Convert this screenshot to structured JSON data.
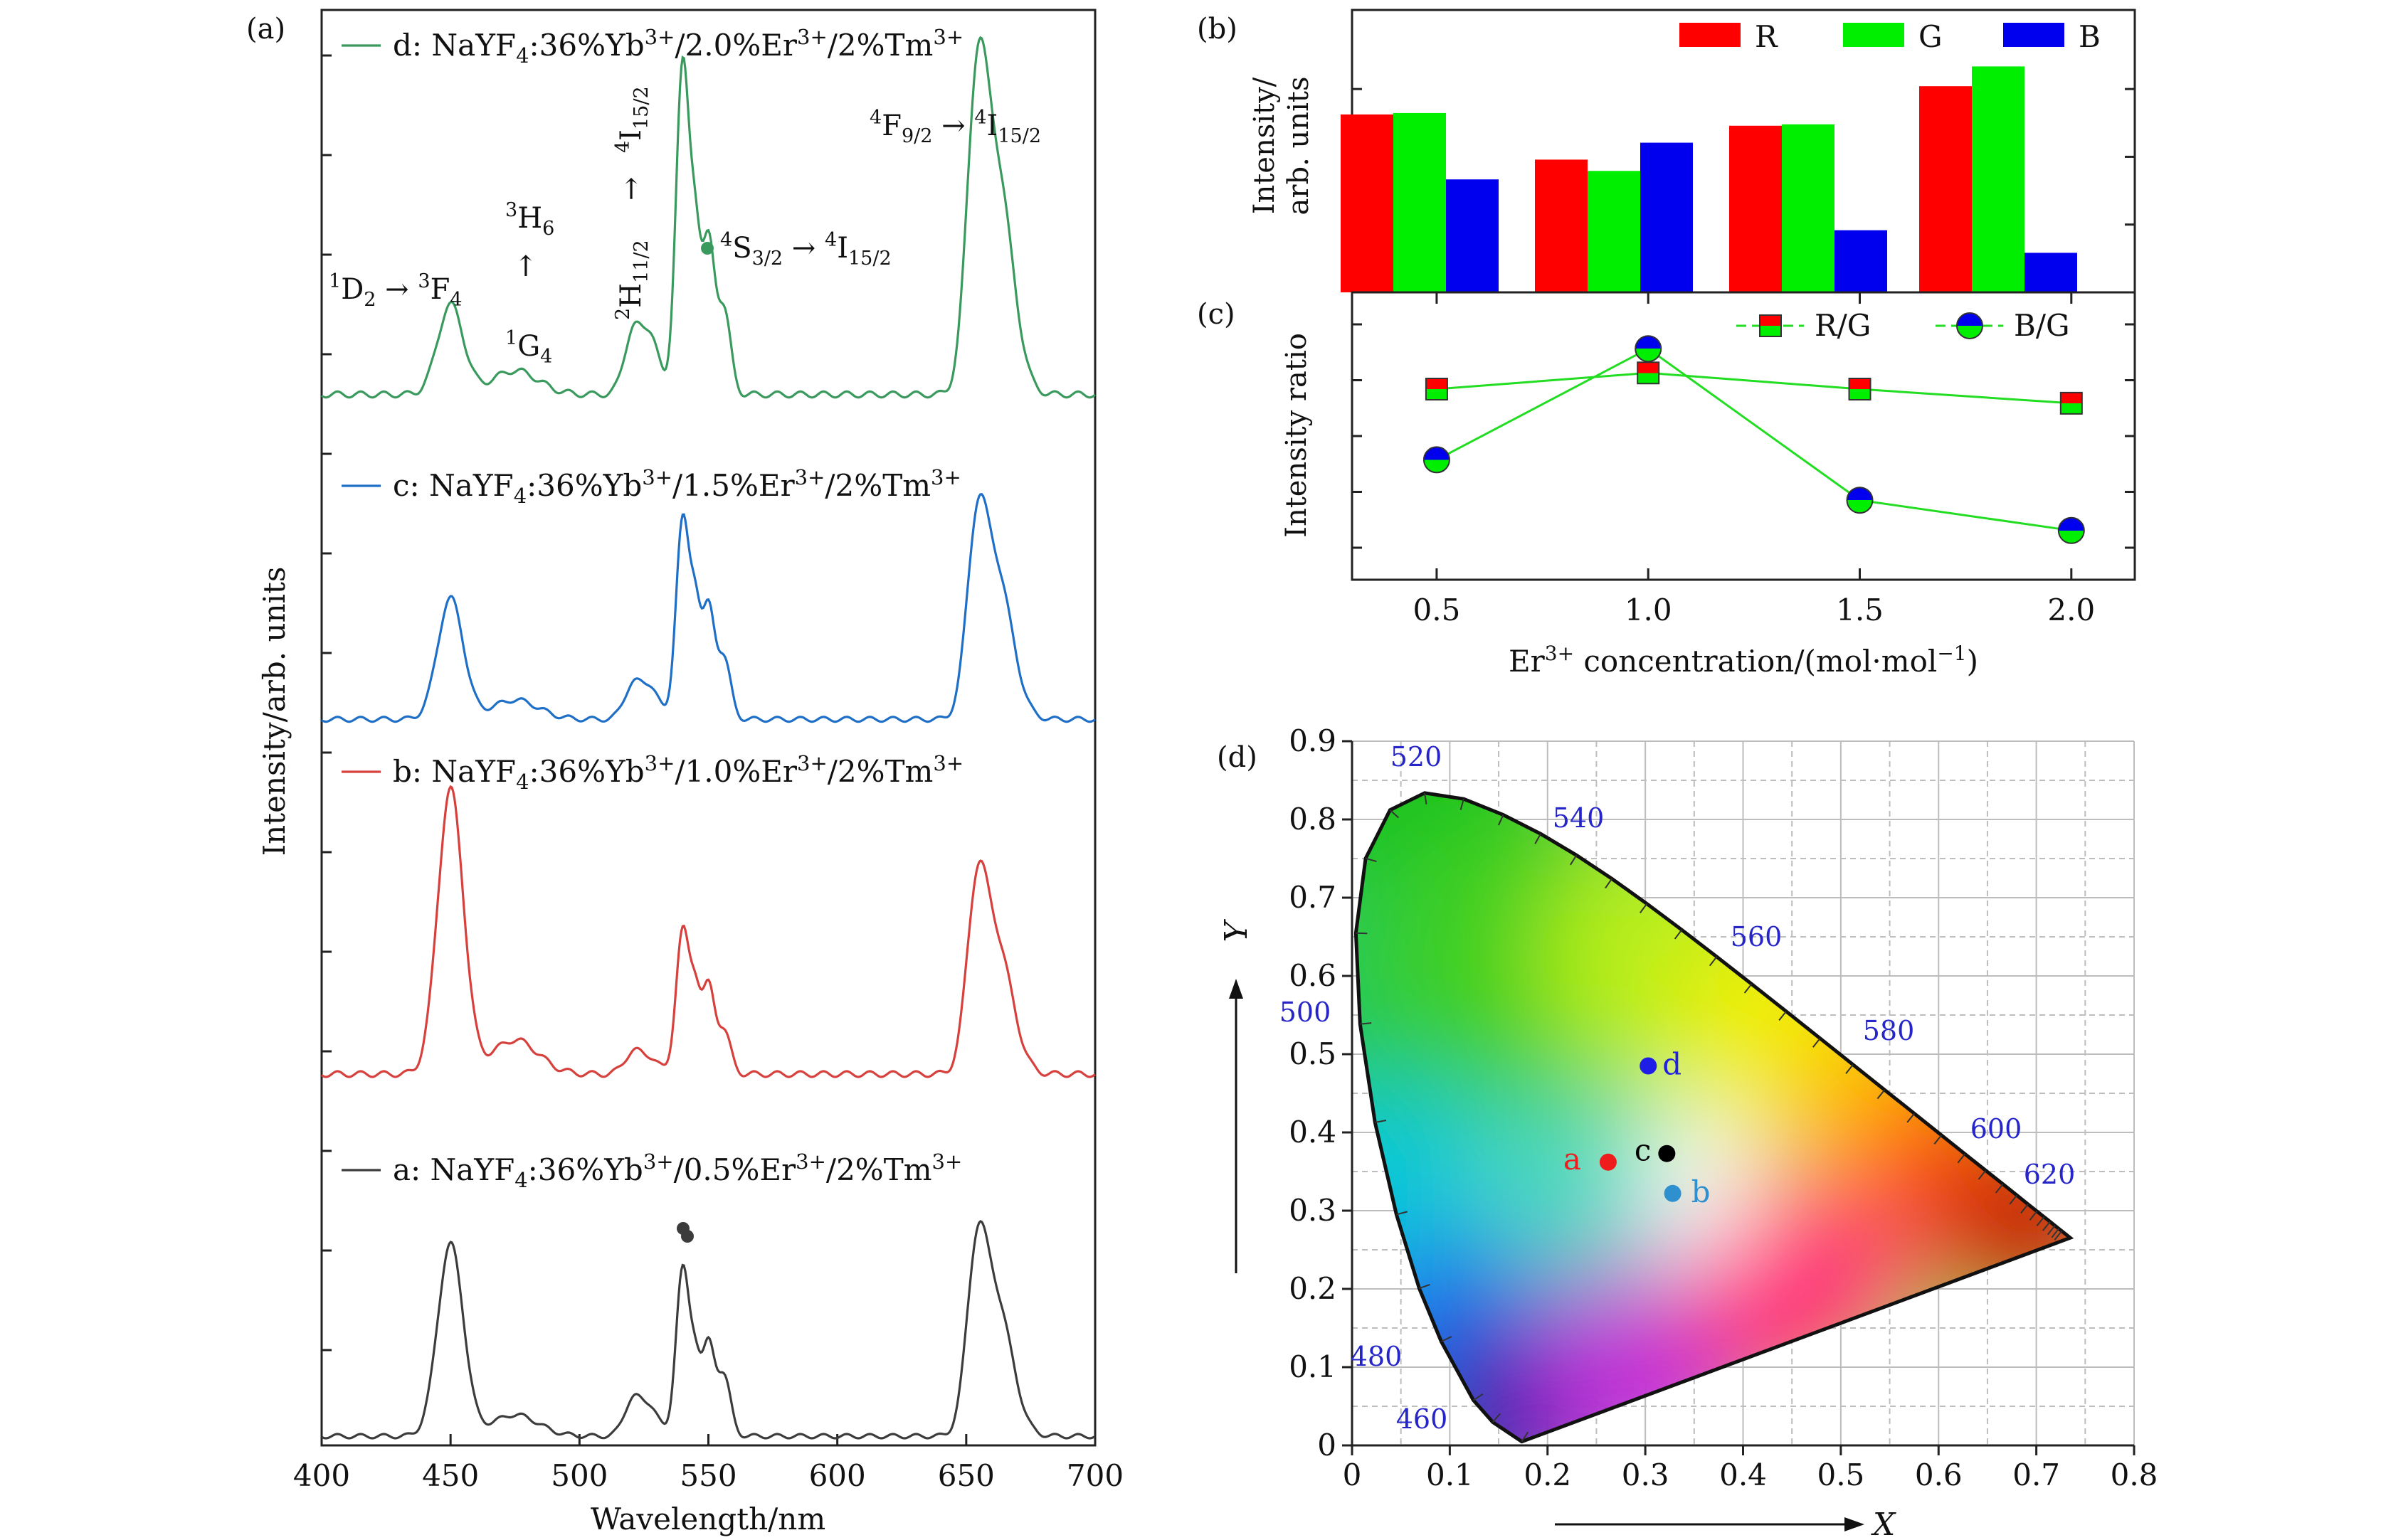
{
  "chart_data": [
    {
      "panel_label": "(a)",
      "type": "line",
      "xlabel": "Wavelength/nm",
      "ylabel": "Intensity/arb. units",
      "xlim": [
        400,
        700
      ],
      "xticks": [
        "400",
        "450",
        "500",
        "550",
        "600",
        "650",
        "700"
      ],
      "peaks": [
        {
          "nm": 450,
          "w": 5,
          "key": "p450"
        },
        {
          "nm": 475,
          "w": 9,
          "key": "p475"
        },
        {
          "nm": 521,
          "w": 3.5,
          "key": "p521"
        },
        {
          "nm": 528,
          "w": 3,
          "key": "p528"
        },
        {
          "nm": 540,
          "w": 2.6,
          "key": "p540"
        },
        {
          "nm": 545,
          "w": 2,
          "key": "p545"
        },
        {
          "nm": 550,
          "w": 2.4,
          "key": "p550"
        },
        {
          "nm": 556,
          "w": 2.6,
          "key": "p556"
        },
        {
          "nm": 654,
          "w": 4,
          "key": "p654"
        },
        {
          "nm": 662,
          "w": 6,
          "key": "p662"
        }
      ],
      "series": [
        {
          "id": "a",
          "name": "a: NaYF4:36%Yb3+/0.5%Er3+/2%Tm3+",
          "color": "#3c3c3c",
          "amp": {
            "p450": 0.9,
            "p475": 0.1,
            "p521": 0.18,
            "p528": 0.12,
            "p540": 0.78,
            "p545": 0.3,
            "p550": 0.42,
            "p556": 0.28,
            "p654": 0.72,
            "p662": 0.6
          }
        },
        {
          "id": "b",
          "name": "b: NaYF4:36%Yb3+/1.0%Er3+/2%Tm3+",
          "color": "#d6413d",
          "amp": {
            "p450": 1.0,
            "p475": 0.12,
            "p521": 0.08,
            "p528": 0.05,
            "p540": 0.5,
            "p545": 0.25,
            "p550": 0.3,
            "p556": 0.15,
            "p654": 0.54,
            "p662": 0.44
          }
        },
        {
          "id": "c",
          "name": "c: NaYF4:36%Yb3+/1.5%Er3+/2%Tm3+",
          "color": "#1f6fc6",
          "amp": {
            "p450": 0.5,
            "p475": 0.08,
            "p521": 0.15,
            "p528": 0.12,
            "p540": 0.82,
            "p545": 0.4,
            "p550": 0.45,
            "p556": 0.25,
            "p654": 0.65,
            "p662": 0.58
          }
        },
        {
          "id": "d",
          "name": "d: NaYF4:36%Yb3+/2.0%Er3+/2%Tm3+",
          "color": "#3a9a5e",
          "amp": {
            "p450": 0.3,
            "p475": 0.08,
            "p521": 0.22,
            "p528": 0.18,
            "p540": 1.1,
            "p545": 0.45,
            "p550": 0.5,
            "p556": 0.28,
            "p654": 0.85,
            "p662": 0.72
          }
        }
      ],
      "annotations": {
        "d2": "1D2 → 3F4",
        "g4": "1G4 → 3H6",
        "h11": "2H11/2 → 4I15/2",
        "s32": "4S3/2 → 4I15/2",
        "f92": "4F9/2 → 4I15/2"
      }
    },
    {
      "panel_label": "(b)",
      "type": "bar",
      "ylabel": "Intensity/ arb. units",
      "categories": [
        "0.5",
        "1.0",
        "1.5",
        "2.0"
      ],
      "series": [
        {
          "name": "R",
          "color": "#ff0000",
          "values": [
            0.63,
            0.47,
            0.59,
            0.73
          ]
        },
        {
          "name": "G",
          "color": "#00ee00",
          "values": [
            0.635,
            0.43,
            0.595,
            0.8
          ]
        },
        {
          "name": "B",
          "color": "#0000ee",
          "values": [
            0.4,
            0.53,
            0.22,
            0.14
          ]
        }
      ],
      "ylim": [
        0,
        1.0
      ]
    },
    {
      "panel_label": "(c)",
      "type": "line",
      "ylabel": "Intensity ratio",
      "xlabel": "Er3+ concentration/(mol·mol−1)",
      "x": [
        0.5,
        1.0,
        1.5,
        2.0
      ],
      "xticks": [
        "0.5",
        "1.0",
        "1.5",
        "2.0"
      ],
      "xlim": [
        0.3,
        2.15
      ],
      "ylim": [
        0,
        1.0
      ],
      "series": [
        {
          "name": "R/G",
          "values": [
            0.75,
            0.83,
            0.75,
            0.68
          ]
        },
        {
          "name": "B/G",
          "values": [
            0.4,
            0.95,
            0.2,
            0.05
          ]
        }
      ]
    },
    {
      "panel_label": "(d)",
      "type": "scatter",
      "xlabel": "X",
      "ylabel": "Y",
      "xlim": [
        0,
        0.8
      ],
      "ylim": [
        0,
        0.9
      ],
      "xticks": [
        "0",
        "0.1",
        "0.2",
        "0.3",
        "0.4",
        "0.5",
        "0.6",
        "0.7",
        "0.8"
      ],
      "yticks": [
        "0",
        "0.1",
        "0.2",
        "0.3",
        "0.4",
        "0.5",
        "0.6",
        "0.7",
        "0.8",
        "0.9"
      ],
      "points": [
        {
          "label": "a",
          "x": 0.262,
          "y": 0.362,
          "color": "#ee1c1c"
        },
        {
          "label": "b",
          "x": 0.328,
          "y": 0.322,
          "color": "#2f90d0"
        },
        {
          "label": "c",
          "x": 0.322,
          "y": 0.373,
          "color": "#000000"
        },
        {
          "label": "d",
          "x": 0.303,
          "y": 0.485,
          "color": "#1e1ee6"
        }
      ],
      "wavelengths": [
        "460",
        "480",
        "500",
        "520",
        "540",
        "560",
        "580",
        "600",
        "620"
      ],
      "locus": [
        [
          0.1741,
          0.005
        ],
        [
          0.1736,
          0.0049
        ],
        [
          0.144,
          0.0297
        ],
        [
          0.1241,
          0.0578
        ],
        [
          0.0913,
          0.1327
        ],
        [
          0.0687,
          0.2007
        ],
        [
          0.0454,
          0.295
        ],
        [
          0.0235,
          0.4127
        ],
        [
          0.0082,
          0.5384
        ],
        [
          0.0039,
          0.6548
        ],
        [
          0.0139,
          0.7502
        ],
        [
          0.0389,
          0.812
        ],
        [
          0.0743,
          0.8338
        ],
        [
          0.1142,
          0.8262
        ],
        [
          0.1547,
          0.8059
        ],
        [
          0.1929,
          0.7816
        ],
        [
          0.2296,
          0.7543
        ],
        [
          0.2658,
          0.7243
        ],
        [
          0.3016,
          0.6923
        ],
        [
          0.3373,
          0.6589
        ],
        [
          0.3731,
          0.6245
        ],
        [
          0.4087,
          0.5896
        ],
        [
          0.4441,
          0.5547
        ],
        [
          0.4788,
          0.5202
        ],
        [
          0.5125,
          0.4866
        ],
        [
          0.5448,
          0.4544
        ],
        [
          0.5752,
          0.4242
        ],
        [
          0.6029,
          0.3965
        ],
        [
          0.627,
          0.3725
        ],
        [
          0.6482,
          0.3514
        ],
        [
          0.6658,
          0.334
        ],
        [
          0.6801,
          0.3197
        ],
        [
          0.6915,
          0.3083
        ],
        [
          0.7006,
          0.2993
        ],
        [
          0.7079,
          0.292
        ],
        [
          0.714,
          0.2859
        ],
        [
          0.719,
          0.2809
        ],
        [
          0.723,
          0.277
        ],
        [
          0.726,
          0.274
        ],
        [
          0.7347,
          0.2653
        ]
      ]
    }
  ]
}
